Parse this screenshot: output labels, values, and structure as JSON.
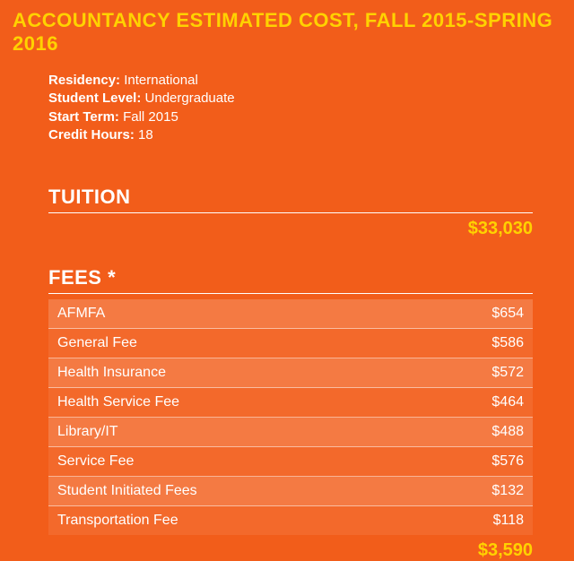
{
  "title": "ACCOUNTANCY ESTIMATED COST, FALL 2015-SPRING 2016",
  "meta": {
    "residency_label": "Residency:",
    "residency_value": "International",
    "level_label": "Student Level:",
    "level_value": "Undergraduate",
    "term_label": "Start Term:",
    "term_value": "Fall 2015",
    "credits_label": "Credit Hours:",
    "credits_value": "18"
  },
  "tuition": {
    "heading": "TUITION",
    "total": "$33,030"
  },
  "fees": {
    "heading": "FEES *",
    "items": [
      {
        "label": "AFMFA",
        "amount": "$654"
      },
      {
        "label": "General Fee",
        "amount": "$586"
      },
      {
        "label": "Health Insurance",
        "amount": "$572"
      },
      {
        "label": "Health Service Fee",
        "amount": "$464"
      },
      {
        "label": "Library/IT",
        "amount": "$488"
      },
      {
        "label": "Service Fee",
        "amount": "$576"
      },
      {
        "label": "Student Initiated Fees",
        "amount": "$132"
      },
      {
        "label": "Transportation Fee",
        "amount": "$118"
      }
    ],
    "total": "$3,590"
  },
  "colors": {
    "background": "#f25d1a",
    "accent": "#ffd200",
    "text": "#ffffff",
    "row_odd": "rgba(255,255,255,0.18)",
    "row_even": "rgba(255,255,255,0.08)"
  }
}
